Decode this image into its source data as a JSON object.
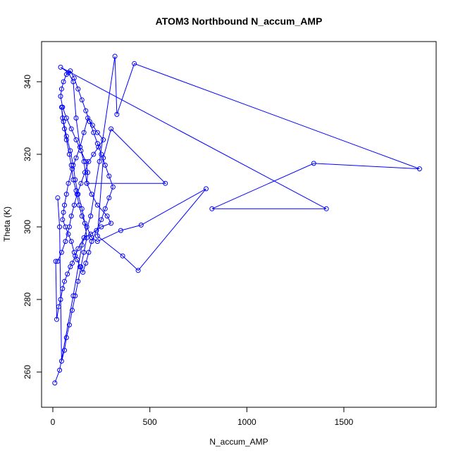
{
  "chart_data": {
    "type": "line",
    "marker": "open-circle",
    "title": "ATOM3 Northbound N_accum_AMP",
    "xlabel": "N_accum_AMP",
    "ylabel": "Theta (K)",
    "xlim": [
      0,
      1950
    ],
    "ylim": [
      250,
      350
    ],
    "x_ticks": [
      0,
      500,
      1000,
      1500
    ],
    "y_ticks": [
      260,
      280,
      300,
      320,
      340
    ],
    "grid": false,
    "color": "#0000ff",
    "series": [
      {
        "x": [
          10,
          35,
          105,
          150,
          195,
          240,
          320,
          330,
          420,
          1890,
          1345,
          820,
          1410,
          40,
          80,
          105,
          120,
          140,
          160,
          175,
          200,
          230,
          280,
          300,
          250,
          195,
          160,
          130,
          115,
          100,
          90,
          75,
          60,
          50,
          40,
          30,
          20,
          15,
          25,
          45,
          65,
          85,
          95,
          110,
          125,
          145,
          165,
          185,
          210,
          235,
          260,
          230,
          205,
          180,
          160,
          140,
          120,
          100,
          80,
          70,
          60,
          55,
          50,
          65,
          80,
          95,
          110,
          125,
          140,
          155,
          170,
          185,
          200,
          225,
          250,
          270,
          290,
          310,
          290,
          270,
          250,
          230,
          210,
          190,
          170,
          150,
          130,
          110,
          90,
          70,
          55,
          45,
          40,
          50,
          70,
          95,
          120,
          145,
          170,
          180,
          175,
          580,
          300,
          260,
          230,
          360,
          440,
          790,
          455,
          350,
          230,
          200,
          175,
          150,
          135,
          120,
          105,
          95,
          85,
          70,
          60,
          50,
          45,
          55,
          70,
          90,
          105,
          115,
          130,
          150,
          165,
          175,
          160,
          145,
          130,
          115,
          100,
          85,
          70,
          60,
          45,
          35,
          25
        ],
        "y": [
          257,
          260.5,
          281,
          295,
          303,
          318,
          347,
          331,
          345,
          316,
          317.5,
          305,
          305,
          344,
          342.5,
          340,
          330,
          322,
          318,
          312,
          309,
          306,
          303,
          301,
          300,
          298,
          297,
          294,
          292,
          290,
          289,
          287,
          285,
          283,
          280,
          278,
          274.5,
          290.5,
          290.5,
          293,
          296,
          300,
          303,
          306,
          309,
          312,
          315,
          318,
          320,
          322,
          324,
          326,
          328,
          330,
          326,
          322,
          319,
          316,
          312,
          309,
          306,
          304,
          302,
          300,
          298,
          296,
          293,
          291,
          289,
          287.5,
          290,
          293,
          296,
          299,
          302,
          305,
          308,
          311,
          314,
          317,
          320,
          323,
          326,
          329,
          332,
          335,
          338,
          341,
          343,
          342,
          340,
          338,
          336,
          333,
          330,
          327,
          324,
          321,
          318,
          315,
          312,
          312,
          327,
          319,
          297.5,
          292,
          288,
          310.5,
          300.5,
          299,
          296,
          297,
          300,
          303,
          306,
          310,
          313,
          317,
          320,
          324,
          327,
          330,
          333,
          329,
          325,
          321,
          317,
          313,
          309,
          305,
          301,
          297,
          293,
          289,
          285,
          281,
          277,
          273,
          269.5,
          266,
          263,
          300,
          308
        ]
      }
    ]
  }
}
